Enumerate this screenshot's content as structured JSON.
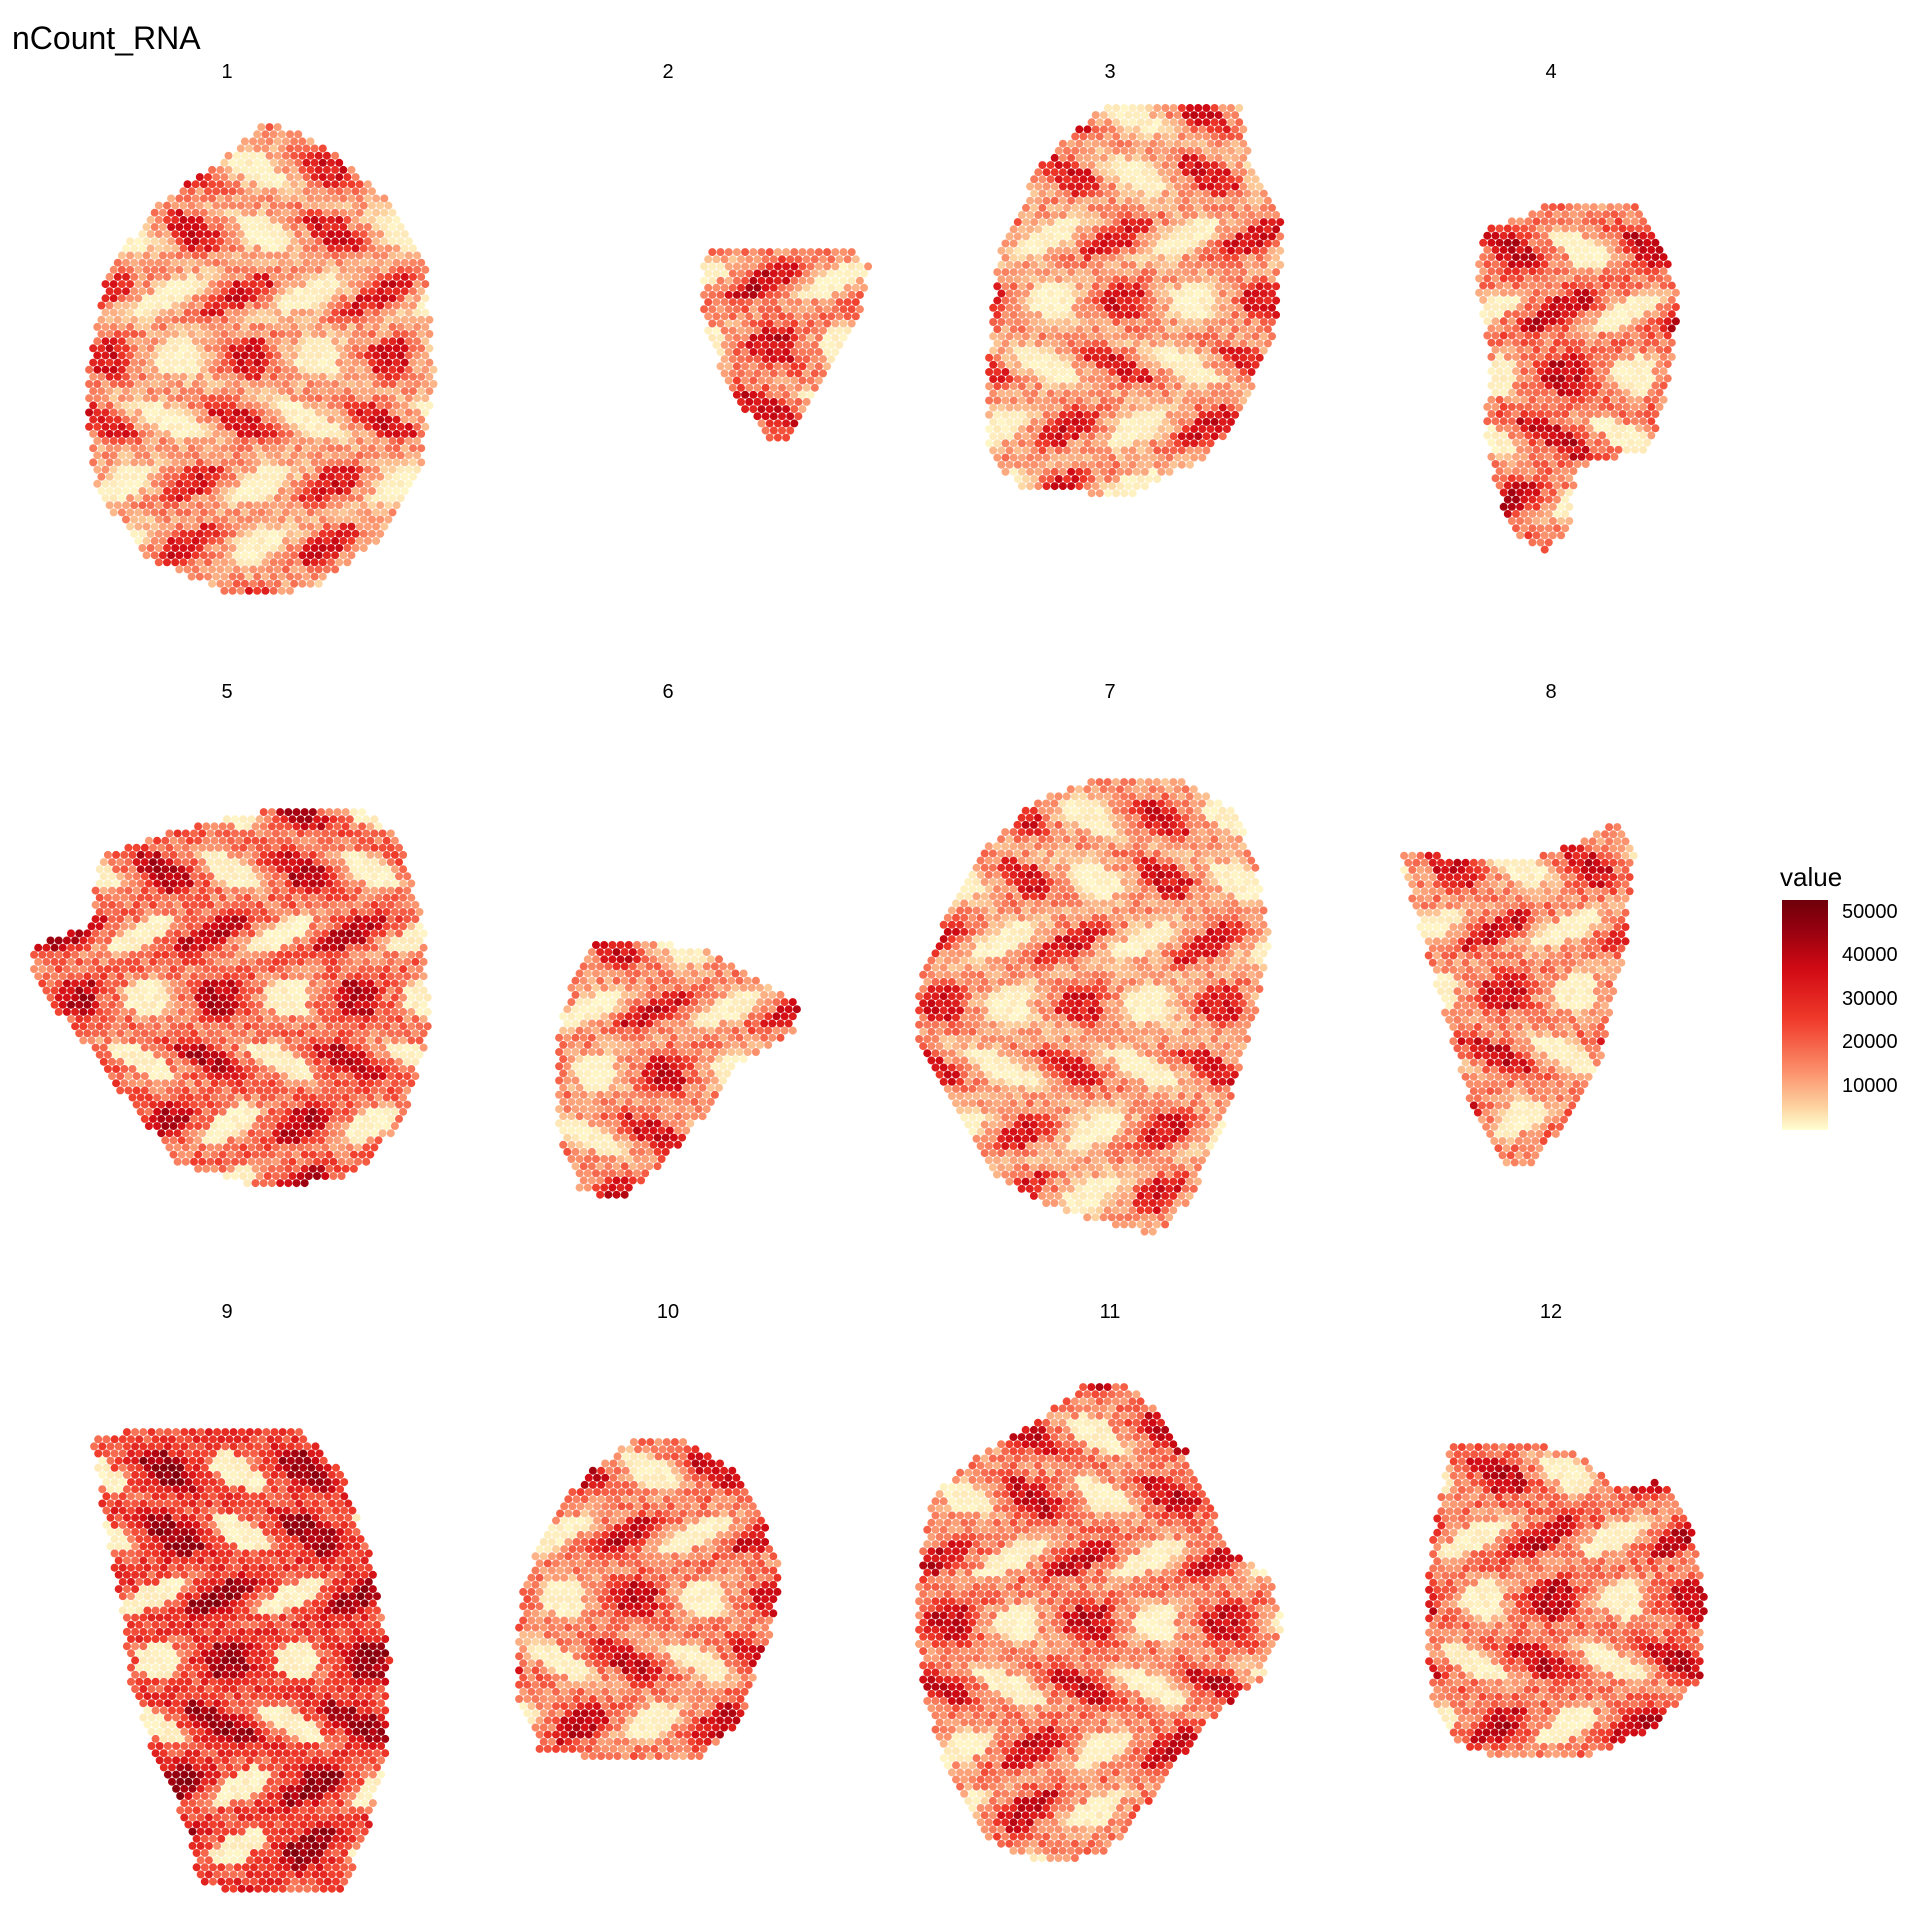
{
  "plot_title": "nCount_RNA",
  "chart_data": {
    "type": "scatter",
    "description_kind": "spatial spot feature plot, 12 facets",
    "feature": "nCount_RNA",
    "facets": [
      "1",
      "2",
      "3",
      "4",
      "5",
      "6",
      "7",
      "8",
      "9",
      "10",
      "11",
      "12"
    ],
    "grid": false,
    "legend": {
      "title": "value",
      "placement": "right",
      "ticks": [
        10000,
        20000,
        30000,
        40000,
        50000
      ],
      "tick_labels": [
        "10000",
        "20000",
        "30000",
        "40000",
        "50000"
      ],
      "range": [
        0,
        53000
      ],
      "colors": [
        "#FFFFD2",
        "#FDD3A0",
        "#FB8E6A",
        "#F03A2A",
        "#D10A14",
        "#93000F",
        "#6E0009"
      ]
    },
    "panels": [
      {
        "label": "1",
        "level": 0.3
      },
      {
        "label": "2",
        "level": 0.36
      },
      {
        "label": "3",
        "level": 0.3
      },
      {
        "label": "4",
        "level": 0.38
      },
      {
        "label": "5",
        "level": 0.4
      },
      {
        "label": "6",
        "level": 0.34
      },
      {
        "label": "7",
        "level": 0.3
      },
      {
        "label": "8",
        "level": 0.34
      },
      {
        "label": "9",
        "level": 0.5
      },
      {
        "label": "10",
        "level": 0.36
      },
      {
        "label": "11",
        "level": 0.36
      },
      {
        "label": "12",
        "level": 0.38
      }
    ]
  }
}
